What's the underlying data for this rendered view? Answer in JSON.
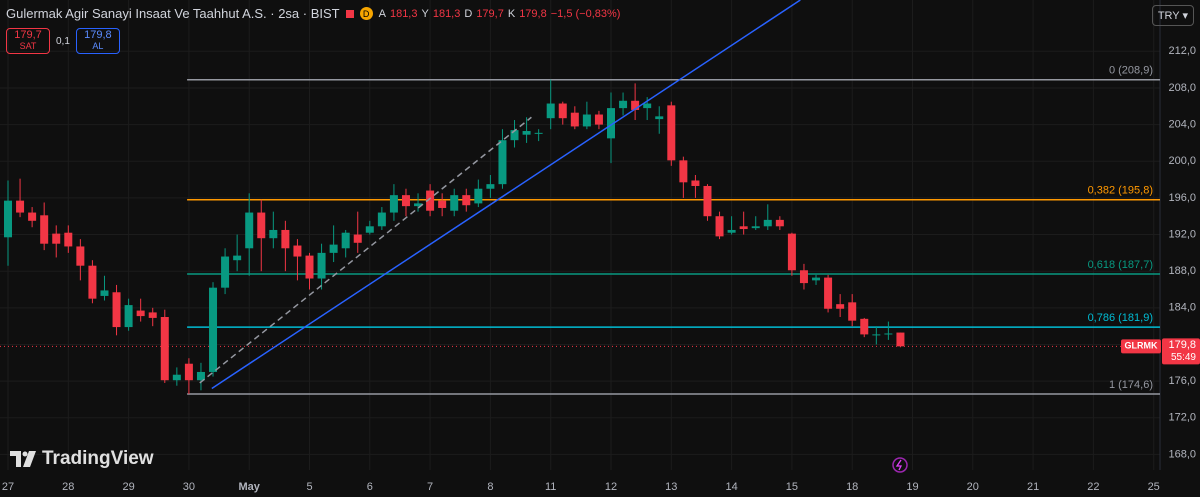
{
  "header": {
    "title": "Gulermak Agir Sanayi Insaat Ve Taahhut A.S. · 2sa · BIST",
    "badge": "D",
    "ohlc": [
      {
        "label": "A",
        "value": "181,3"
      },
      {
        "label": "Y",
        "value": "181,3"
      },
      {
        "label": "D",
        "value": "179,7"
      },
      {
        "label": "K",
        "value": "179,8"
      }
    ],
    "change": "−1,5 (−0,83%)",
    "sell": {
      "price": "179,7",
      "label": "SAT"
    },
    "spread": "0,1",
    "buy": {
      "price": "179,8",
      "label": "AL"
    },
    "currency": "TRY",
    "brand": "TradingView"
  },
  "chart_data": {
    "type": "candlestick",
    "up_color": "#089981",
    "down_color": "#f23645",
    "open": [
      191.7,
      195.7,
      194.4,
      194.1,
      192.1,
      192.2,
      190.7,
      188.6,
      185.3,
      185.7,
      181.9,
      183.7,
      183.5,
      183.0,
      176.1,
      177.9,
      176.1,
      177.0,
      186.2,
      189.2,
      190.5,
      194.4,
      191.6,
      192.5,
      190.8,
      189.7,
      187.2,
      190.0,
      190.5,
      192.0,
      192.2,
      192.9,
      194.4,
      196.3,
      195.1,
      196.8,
      195.7,
      194.6,
      196.3,
      195.4,
      197.0,
      197.5,
      202.3,
      202.9,
      203.0,
      204.7,
      206.3,
      205.3,
      203.8,
      205.1,
      202.5,
      205.8,
      206.6,
      205.8,
      204.6,
      206.1,
      200.1,
      197.9,
      197.3,
      194.0,
      192.2,
      192.9,
      192.7,
      192.9,
      193.6,
      192.1,
      188.1,
      187.0,
      187.3,
      184.4,
      184.6,
      182.8,
      181.0,
      181.1,
      181.3
    ],
    "high": [
      197.9,
      198.1,
      195.0,
      195.5,
      193.0,
      193.0,
      191.5,
      189.2,
      187.5,
      186.5,
      185.0,
      185.0,
      184.0,
      183.8,
      177.5,
      178.5,
      178.0,
      186.8,
      190.5,
      192.0,
      196.5,
      195.8,
      194.5,
      193.5,
      191.5,
      190.0,
      191.0,
      193.0,
      192.5,
      194.5,
      193.5,
      195.0,
      197.5,
      197.0,
      196.5,
      197.5,
      196.5,
      197.0,
      197.0,
      198.0,
      198.5,
      203.5,
      204.5,
      204.8,
      203.5,
      208.9,
      206.5,
      206.0,
      206.5,
      205.5,
      207.5,
      207.5,
      208.5,
      207.0,
      206.0,
      206.5,
      200.5,
      198.5,
      197.5,
      194.5,
      194.0,
      194.5,
      194.0,
      195.3,
      194.0,
      192.2,
      188.8,
      187.6,
      187.6,
      185.5,
      185.5,
      182.9,
      182.0,
      182.5,
      181.3
    ],
    "low": [
      188.6,
      193.9,
      192.8,
      190.3,
      189.5,
      190.0,
      187.0,
      184.5,
      184.8,
      181.0,
      181.5,
      182.5,
      182.0,
      175.8,
      175.5,
      174.6,
      175.0,
      176.5,
      185.5,
      188.0,
      187.5,
      188.0,
      190.5,
      188.0,
      187.0,
      186.0,
      186.0,
      189.0,
      189.5,
      190.0,
      192.0,
      192.5,
      193.5,
      194.0,
      194.5,
      194.0,
      194.0,
      194.0,
      194.5,
      195.0,
      196.0,
      197.0,
      201.5,
      202.0,
      202.2,
      203.5,
      204.0,
      203.5,
      203.5,
      203.5,
      199.8,
      205.0,
      204.5,
      204.5,
      203.0,
      199.5,
      196.0,
      196.0,
      193.5,
      191.5,
      192.0,
      192.0,
      192.5,
      192.5,
      192.5,
      187.5,
      186.0,
      186.5,
      183.5,
      183.0,
      182.0,
      180.8,
      180.0,
      180.5,
      179.7
    ],
    "close": [
      195.7,
      194.4,
      193.5,
      191.0,
      191.0,
      190.7,
      188.6,
      185.0,
      185.9,
      181.9,
      184.3,
      183.1,
      182.9,
      176.1,
      176.7,
      176.1,
      177.0,
      186.2,
      189.6,
      189.7,
      194.4,
      191.6,
      192.5,
      190.5,
      189.6,
      187.2,
      190.0,
      190.9,
      192.2,
      191.1,
      192.9,
      194.4,
      196.3,
      195.1,
      195.4,
      194.6,
      194.9,
      196.3,
      195.2,
      197.0,
      197.5,
      202.3,
      203.4,
      203.3,
      203.1,
      206.3,
      204.7,
      203.8,
      205.1,
      204.0,
      205.8,
      206.6,
      205.6,
      206.3,
      204.9,
      200.1,
      197.7,
      197.3,
      194.0,
      191.8,
      192.5,
      192.6,
      192.9,
      193.6,
      192.9,
      188.1,
      186.7,
      187.3,
      183.9,
      183.9,
      182.6,
      181.1,
      181.1,
      181.2,
      179.8
    ],
    "x_labels": [
      "27",
      "28",
      "29",
      "30",
      "May",
      "5",
      "6",
      "7",
      "8",
      "11",
      "12",
      "13",
      "14",
      "15",
      "18",
      "19",
      "20",
      "21",
      "22",
      "25"
    ],
    "ylim": [
      166.3,
      217.6
    ],
    "yticks": [
      {
        "value": 168,
        "label": "168,0"
      },
      {
        "value": 172,
        "label": "172,0"
      },
      {
        "value": 176,
        "label": "176,0"
      },
      {
        "value": 180,
        "label": "180,0"
      },
      {
        "value": 184,
        "label": "184,0"
      },
      {
        "value": 188,
        "label": "188,0"
      },
      {
        "value": 192,
        "label": "192,0"
      },
      {
        "value": 196,
        "label": "196,0"
      },
      {
        "value": 200,
        "label": "200,0"
      },
      {
        "value": 204,
        "label": "204,0"
      },
      {
        "value": 208,
        "label": "208,0"
      },
      {
        "value": 212,
        "label": "212,0"
      }
    ],
    "grid": true,
    "fib_levels": [
      {
        "value": 208.9,
        "label": "0 (208,9)",
        "color": "#9598a1"
      },
      {
        "value": 195.8,
        "label": "0,382 (195,8)",
        "color": "#ff9800"
      },
      {
        "value": 187.7,
        "label": "0,618 (187,7)",
        "color": "#089981"
      },
      {
        "value": 181.9,
        "label": "0,786 (181,9)",
        "color": "#00bcd4"
      },
      {
        "value": 174.6,
        "label": "1 (174,6)",
        "color": "#9598a1"
      }
    ],
    "trend_lines": [
      {
        "color": "#2962ff",
        "dashed": false,
        "x": [
          16.9,
          65.7
        ],
        "y": [
          175.2,
          217.6
        ]
      },
      {
        "color": "#9598a1",
        "dashed": true,
        "x": [
          15.9,
          43.4
        ],
        "y": [
          175.8,
          204.8
        ]
      }
    ],
    "last_price": {
      "value": 179.8,
      "label": "179,8",
      "symbol": "GLRMK",
      "countdown": "55:49"
    }
  }
}
